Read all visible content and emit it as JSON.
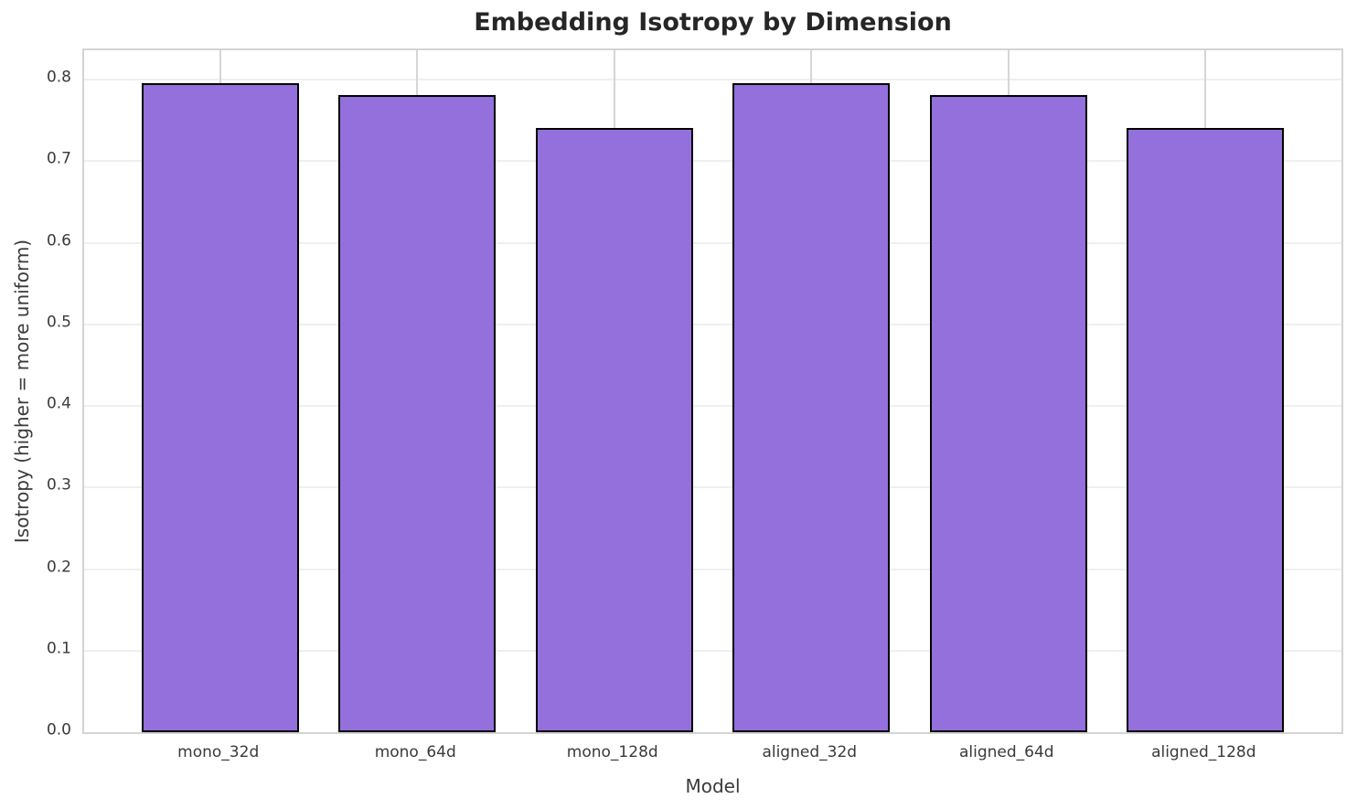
{
  "figure": {
    "background": "#ffffff"
  },
  "chart_data": {
    "type": "bar",
    "title": "Embedding Isotropy by Dimension",
    "xlabel": "Model",
    "ylabel": "Isotropy (higher = more uniform)",
    "categories": [
      "mono_32d",
      "mono_64d",
      "mono_128d",
      "aligned_32d",
      "aligned_64d",
      "aligned_128d"
    ],
    "values": [
      0.796,
      0.781,
      0.741,
      0.796,
      0.781,
      0.741
    ],
    "ytick_labels": [
      "0.0",
      "0.1",
      "0.2",
      "0.3",
      "0.4",
      "0.5",
      "0.6",
      "0.7",
      "0.8"
    ],
    "ylim": [
      0,
      0.836
    ],
    "xlim": [
      -0.69,
      5.69
    ],
    "bar_width": 0.8,
    "grid": true,
    "legend": "none",
    "colors": {
      "bar_fill": "#9370DB",
      "bar_edge": "#000000",
      "grid_horizontal": "#efefef",
      "grid_vertical": "#d6d6d6",
      "spine": "#d4d4d4",
      "title_text": "#262626",
      "tick_text": "#3a3a3a"
    }
  }
}
